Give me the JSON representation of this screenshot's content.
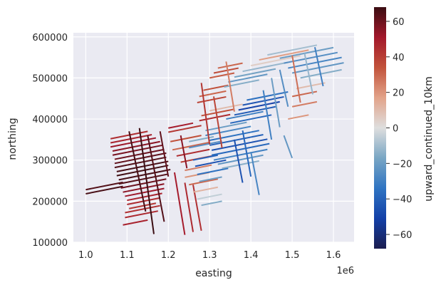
{
  "chart_data": {
    "type": "scatter",
    "description_kind": "flight-line survey map colored by value",
    "xlabel": "easting",
    "ylabel": "northing",
    "x_offset_label": "1e6",
    "xlim": [
      970000,
      1650000
    ],
    "ylim": [
      100000,
      610000
    ],
    "x_ticks": [
      1000000,
      1100000,
      1200000,
      1300000,
      1400000,
      1500000,
      1600000
    ],
    "x_tick_labels": [
      "1.0",
      "1.1",
      "1.2",
      "1.3",
      "1.4",
      "1.5",
      "1.6"
    ],
    "y_ticks": [
      100000,
      200000,
      300000,
      400000,
      500000,
      600000
    ],
    "y_tick_labels": [
      "100000",
      "200000",
      "300000",
      "400000",
      "500000",
      "600000"
    ],
    "colorbar": {
      "label": "upward_continued_10km",
      "range": [
        -68,
        68
      ],
      "ticks": [
        -60,
        -40,
        -20,
        0,
        20,
        40,
        60
      ],
      "tick_labels": [
        "−60",
        "−40",
        "−20",
        "0",
        "20",
        "40",
        "60"
      ],
      "colormap": [
        "#1b1d4f",
        "#1340a8",
        "#2f74c2",
        "#79a6c4",
        "#dedede",
        "#e2a389",
        "#c2533b",
        "#a3182b",
        "#3b0d12"
      ]
    },
    "grid": true,
    "background": "#eaeaf2",
    "segments": [
      {
        "x1": 1000000,
        "y1": 218000,
        "x2": 1090000,
        "y2": 236000,
        "value": 66
      },
      {
        "x1": 1000000,
        "y1": 228000,
        "x2": 1090000,
        "y2": 246000,
        "value": 64
      },
      {
        "x1": 1060000,
        "y1": 352000,
        "x2": 1150000,
        "y2": 370000,
        "value": 45
      },
      {
        "x1": 1060000,
        "y1": 342000,
        "x2": 1160000,
        "y2": 362000,
        "value": 48
      },
      {
        "x1": 1060000,
        "y1": 332000,
        "x2": 1170000,
        "y2": 354000,
        "value": 52
      },
      {
        "x1": 1065000,
        "y1": 322000,
        "x2": 1180000,
        "y2": 345000,
        "value": 55
      },
      {
        "x1": 1065000,
        "y1": 312000,
        "x2": 1185000,
        "y2": 336000,
        "value": 58
      },
      {
        "x1": 1070000,
        "y1": 302000,
        "x2": 1190000,
        "y2": 326000,
        "value": 60
      },
      {
        "x1": 1070000,
        "y1": 292000,
        "x2": 1195000,
        "y2": 317000,
        "value": 62
      },
      {
        "x1": 1070000,
        "y1": 282000,
        "x2": 1195000,
        "y2": 307000,
        "value": 64
      },
      {
        "x1": 1075000,
        "y1": 272000,
        "x2": 1200000,
        "y2": 297000,
        "value": 66
      },
      {
        "x1": 1075000,
        "y1": 262000,
        "x2": 1200000,
        "y2": 287000,
        "value": 67
      },
      {
        "x1": 1080000,
        "y1": 252000,
        "x2": 1205000,
        "y2": 277000,
        "value": 66
      },
      {
        "x1": 1080000,
        "y1": 242000,
        "x2": 1200000,
        "y2": 266000,
        "value": 64
      },
      {
        "x1": 1085000,
        "y1": 232000,
        "x2": 1195000,
        "y2": 254000,
        "value": 60
      },
      {
        "x1": 1090000,
        "y1": 222000,
        "x2": 1190000,
        "y2": 242000,
        "value": 55
      },
      {
        "x1": 1095000,
        "y1": 212000,
        "x2": 1190000,
        "y2": 231000,
        "value": 52
      },
      {
        "x1": 1100000,
        "y1": 202000,
        "x2": 1185000,
        "y2": 219000,
        "value": 48
      },
      {
        "x1": 1100000,
        "y1": 192000,
        "x2": 1180000,
        "y2": 208000,
        "value": 45
      },
      {
        "x1": 1105000,
        "y1": 182000,
        "x2": 1170000,
        "y2": 195000,
        "value": 42
      },
      {
        "x1": 1095000,
        "y1": 172000,
        "x2": 1180000,
        "y2": 189000,
        "value": 44
      },
      {
        "x1": 1095000,
        "y1": 160000,
        "x2": 1175000,
        "y2": 176000,
        "value": 46
      },
      {
        "x1": 1090000,
        "y1": 142000,
        "x2": 1150000,
        "y2": 154000,
        "value": 48
      },
      {
        "x1": 1130000,
        "y1": 378000,
        "x2": 1165000,
        "y2": 120000,
        "value": 68
      },
      {
        "x1": 1150000,
        "y1": 360000,
        "x2": 1190000,
        "y2": 150000,
        "value": 64
      },
      {
        "x1": 1105000,
        "y1": 370000,
        "x2": 1145000,
        "y2": 175000,
        "value": 66
      },
      {
        "x1": 1215000,
        "y1": 270000,
        "x2": 1240000,
        "y2": 118000,
        "value": 50
      },
      {
        "x1": 1240000,
        "y1": 245000,
        "x2": 1260000,
        "y2": 125000,
        "value": 46
      },
      {
        "x1": 1260000,
        "y1": 240000,
        "x2": 1280000,
        "y2": 128000,
        "value": 44
      },
      {
        "x1": 1200000,
        "y1": 378000,
        "x2": 1260000,
        "y2": 390000,
        "value": 50
      },
      {
        "x1": 1200000,
        "y1": 368000,
        "x2": 1280000,
        "y2": 384000,
        "value": 42
      },
      {
        "x1": 1205000,
        "y1": 345000,
        "x2": 1280000,
        "y2": 360000,
        "value": 35
      },
      {
        "x1": 1210000,
        "y1": 325000,
        "x2": 1300000,
        "y2": 343000,
        "value": 30
      },
      {
        "x1": 1220000,
        "y1": 310000,
        "x2": 1300000,
        "y2": 326000,
        "value": 45
      },
      {
        "x1": 1230000,
        "y1": 295000,
        "x2": 1305000,
        "y2": 310000,
        "value": 40
      },
      {
        "x1": 1240000,
        "y1": 275000,
        "x2": 1305000,
        "y2": 288000,
        "value": 25
      },
      {
        "x1": 1240000,
        "y1": 258000,
        "x2": 1300000,
        "y2": 270000,
        "value": 20
      },
      {
        "x1": 1250000,
        "y1": 240000,
        "x2": 1320000,
        "y2": 254000,
        "value": 30
      },
      {
        "x1": 1260000,
        "y1": 222000,
        "x2": 1320000,
        "y2": 234000,
        "value": 12
      },
      {
        "x1": 1270000,
        "y1": 205000,
        "x2": 1330000,
        "y2": 217000,
        "value": -5
      },
      {
        "x1": 1280000,
        "y1": 190000,
        "x2": 1330000,
        "y2": 200000,
        "value": -15
      },
      {
        "x1": 1250000,
        "y1": 345000,
        "x2": 1310000,
        "y2": 357000,
        "value": -15
      },
      {
        "x1": 1250000,
        "y1": 330000,
        "x2": 1330000,
        "y2": 346000,
        "value": -25
      },
      {
        "x1": 1260000,
        "y1": 300000,
        "x2": 1320000,
        "y2": 312000,
        "value": -40
      },
      {
        "x1": 1265000,
        "y1": 285000,
        "x2": 1340000,
        "y2": 300000,
        "value": -45
      },
      {
        "x1": 1270000,
        "y1": 265000,
        "x2": 1345000,
        "y2": 280000,
        "value": -35
      },
      {
        "x1": 1275000,
        "y1": 248000,
        "x2": 1330000,
        "y2": 259000,
        "value": -20
      },
      {
        "x1": 1290000,
        "y1": 372000,
        "x2": 1390000,
        "y2": 392000,
        "value": -20
      },
      {
        "x1": 1290000,
        "y1": 360000,
        "x2": 1400000,
        "y2": 382000,
        "value": -28
      },
      {
        "x1": 1300000,
        "y1": 348000,
        "x2": 1420000,
        "y2": 372000,
        "value": -35
      },
      {
        "x1": 1300000,
        "y1": 336000,
        "x2": 1430000,
        "y2": 362000,
        "value": -40
      },
      {
        "x1": 1305000,
        "y1": 324000,
        "x2": 1440000,
        "y2": 351000,
        "value": -45
      },
      {
        "x1": 1305000,
        "y1": 312000,
        "x2": 1445000,
        "y2": 340000,
        "value": -38
      },
      {
        "x1": 1310000,
        "y1": 300000,
        "x2": 1440000,
        "y2": 326000,
        "value": -30
      },
      {
        "x1": 1320000,
        "y1": 290000,
        "x2": 1430000,
        "y2": 312000,
        "value": -22
      },
      {
        "x1": 1330000,
        "y1": 280000,
        "x2": 1420000,
        "y2": 298000,
        "value": -14
      },
      {
        "x1": 1340000,
        "y1": 400000,
        "x2": 1430000,
        "y2": 418000,
        "value": -30
      },
      {
        "x1": 1350000,
        "y1": 390000,
        "x2": 1450000,
        "y2": 410000,
        "value": -38
      },
      {
        "x1": 1360000,
        "y1": 410000,
        "x2": 1460000,
        "y2": 430000,
        "value": -42
      },
      {
        "x1": 1370000,
        "y1": 422000,
        "x2": 1470000,
        "y2": 442000,
        "value": -50
      },
      {
        "x1": 1380000,
        "y1": 434000,
        "x2": 1480000,
        "y2": 454000,
        "value": -44
      },
      {
        "x1": 1390000,
        "y1": 446000,
        "x2": 1490000,
        "y2": 466000,
        "value": -35
      },
      {
        "x1": 1300000,
        "y1": 420000,
        "x2": 1380000,
        "y2": 436000,
        "value": 10
      },
      {
        "x1": 1280000,
        "y1": 408000,
        "x2": 1360000,
        "y2": 424000,
        "value": 35
      },
      {
        "x1": 1275000,
        "y1": 396000,
        "x2": 1350000,
        "y2": 411000,
        "value": 45
      },
      {
        "x1": 1270000,
        "y1": 440000,
        "x2": 1340000,
        "y2": 454000,
        "value": 38
      },
      {
        "x1": 1275000,
        "y1": 455000,
        "x2": 1340000,
        "y2": 468000,
        "value": 30
      },
      {
        "x1": 1285000,
        "y1": 470000,
        "x2": 1345000,
        "y2": 482000,
        "value": 35
      },
      {
        "x1": 1300000,
        "y1": 500000,
        "x2": 1360000,
        "y2": 512000,
        "value": 32
      },
      {
        "x1": 1310000,
        "y1": 512000,
        "x2": 1370000,
        "y2": 524000,
        "value": 36
      },
      {
        "x1": 1320000,
        "y1": 524000,
        "x2": 1380000,
        "y2": 536000,
        "value": 30
      },
      {
        "x1": 1335000,
        "y1": 478000,
        "x2": 1420000,
        "y2": 495000,
        "value": -15
      },
      {
        "x1": 1345000,
        "y1": 490000,
        "x2": 1440000,
        "y2": 509000,
        "value": -22
      },
      {
        "x1": 1360000,
        "y1": 502000,
        "x2": 1460000,
        "y2": 522000,
        "value": -18
      },
      {
        "x1": 1380000,
        "y1": 516000,
        "x2": 1490000,
        "y2": 538000,
        "value": -12
      },
      {
        "x1": 1400000,
        "y1": 530000,
        "x2": 1520000,
        "y2": 554000,
        "value": 5
      },
      {
        "x1": 1420000,
        "y1": 544000,
        "x2": 1540000,
        "y2": 568000,
        "value": 18
      },
      {
        "x1": 1440000,
        "y1": 556000,
        "x2": 1560000,
        "y2": 580000,
        "value": -10
      },
      {
        "x1": 1470000,
        "y1": 548000,
        "x2": 1600000,
        "y2": 574000,
        "value": -20
      },
      {
        "x1": 1480000,
        "y1": 536000,
        "x2": 1610000,
        "y2": 562000,
        "value": -25
      },
      {
        "x1": 1490000,
        "y1": 524000,
        "x2": 1620000,
        "y2": 550000,
        "value": -28
      },
      {
        "x1": 1500000,
        "y1": 512000,
        "x2": 1625000,
        "y2": 537000,
        "value": -22
      },
      {
        "x1": 1520000,
        "y1": 500000,
        "x2": 1620000,
        "y2": 520000,
        "value": -15
      },
      {
        "x1": 1510000,
        "y1": 474000,
        "x2": 1580000,
        "y2": 488000,
        "value": 10
      },
      {
        "x1": 1500000,
        "y1": 455000,
        "x2": 1560000,
        "y2": 467000,
        "value": 30
      },
      {
        "x1": 1500000,
        "y1": 430000,
        "x2": 1560000,
        "y2": 442000,
        "value": 25
      },
      {
        "x1": 1490000,
        "y1": 400000,
        "x2": 1540000,
        "y2": 410000,
        "value": 20
      },
      {
        "x1": 1280000,
        "y1": 488000,
        "x2": 1300000,
        "y2": 338000,
        "value": 42
      },
      {
        "x1": 1310000,
        "y1": 455000,
        "x2": 1330000,
        "y2": 330000,
        "value": 38
      },
      {
        "x1": 1340000,
        "y1": 540000,
        "x2": 1360000,
        "y2": 418000,
        "value": 25
      },
      {
        "x1": 1360000,
        "y1": 350000,
        "x2": 1380000,
        "y2": 245000,
        "value": -45
      },
      {
        "x1": 1380000,
        "y1": 372000,
        "x2": 1400000,
        "y2": 260000,
        "value": -38
      },
      {
        "x1": 1430000,
        "y1": 470000,
        "x2": 1450000,
        "y2": 350000,
        "value": -30
      },
      {
        "x1": 1450000,
        "y1": 500000,
        "x2": 1470000,
        "y2": 380000,
        "value": -20
      },
      {
        "x1": 1470000,
        "y1": 520000,
        "x2": 1490000,
        "y2": 430000,
        "value": -25
      },
      {
        "x1": 1500000,
        "y1": 555000,
        "x2": 1520000,
        "y2": 440000,
        "value": 28
      },
      {
        "x1": 1530000,
        "y1": 560000,
        "x2": 1550000,
        "y2": 460000,
        "value": -12
      },
      {
        "x1": 1555000,
        "y1": 575000,
        "x2": 1575000,
        "y2": 480000,
        "value": -30
      },
      {
        "x1": 1230000,
        "y1": 360000,
        "x2": 1245000,
        "y2": 280000,
        "value": 55
      },
      {
        "x1": 1180000,
        "y1": 370000,
        "x2": 1200000,
        "y2": 260000,
        "value": 62
      },
      {
        "x1": 1400000,
        "y1": 320000,
        "x2": 1420000,
        "y2": 215000,
        "value": -28
      },
      {
        "x1": 1480000,
        "y1": 360000,
        "x2": 1500000,
        "y2": 305000,
        "value": -22
      }
    ]
  }
}
